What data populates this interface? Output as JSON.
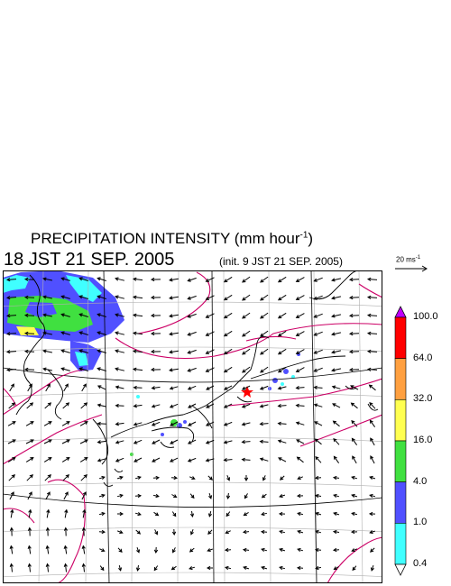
{
  "header": {
    "title": "PRECIPITATION INTENSITY (mm hour",
    "title_exp": "-1",
    "title_close": ")",
    "valid_time": "18 JST 21 SEP. 2005",
    "init_time": "(init. 9 JST 21 SEP. 2005)",
    "ref_vector": "20 ms",
    "ref_vector_exp": "-1"
  },
  "legend": {
    "items": [
      {
        "label": "100.0",
        "color": "#ff00ff"
      },
      {
        "label": "64.0",
        "color": "#ff0000"
      },
      {
        "label": "32.0",
        "color": "#ffa040"
      },
      {
        "label": "16.0",
        "color": "#ffff50"
      },
      {
        "label": "4.0",
        "color": "#40e040"
      },
      {
        "label": "1.0",
        "color": "#5050ff"
      },
      {
        "label": "0.4",
        "color": "#40ffff"
      }
    ],
    "overflow_color": "#c000ff",
    "underflow_color": "#ffffff"
  },
  "map": {
    "marker": "red-star",
    "contour_color": "#cc0066"
  }
}
